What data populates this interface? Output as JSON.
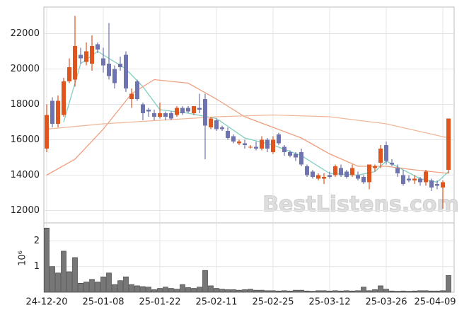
{
  "chart_data": {
    "type": "candlestick",
    "categories": [
      "24-12-20",
      null,
      null,
      null,
      null,
      null,
      null,
      null,
      null,
      null,
      "25-01-08",
      null,
      null,
      null,
      null,
      null,
      null,
      null,
      null,
      null,
      "25-01-22",
      null,
      null,
      null,
      null,
      null,
      null,
      null,
      null,
      null,
      "25-02-11",
      null,
      null,
      null,
      null,
      null,
      null,
      null,
      null,
      null,
      "25-02-25",
      null,
      null,
      null,
      null,
      null,
      null,
      null,
      null,
      null,
      "25-03-12",
      null,
      null,
      null,
      null,
      null,
      null,
      null,
      null,
      null,
      "25-03-26",
      null,
      null,
      null,
      null,
      null,
      null,
      null,
      null,
      null,
      "25-04-09",
      null
    ],
    "open": [
      15500,
      18200,
      16900,
      17400,
      19300,
      19400,
      20800,
      20400,
      20300,
      21400,
      20600,
      20300,
      20000,
      20300,
      20800,
      18300,
      19300,
      18000,
      17700,
      17500,
      17300,
      17500,
      17500,
      17400,
      17800,
      17800,
      17500,
      17800,
      18300,
      16700,
      17100,
      16700,
      16500,
      16200,
      15800,
      15800,
      15600,
      15600,
      15500,
      16000,
      15300,
      16300,
      15600,
      15300,
      15200,
      15300,
      14500,
      14200,
      13800,
      13800,
      14000,
      14000,
      14400,
      14200,
      14000,
      14000,
      13900,
      13600,
      14400,
      14700,
      15700,
      14700,
      14400,
      14000,
      13800,
      13700,
      13800,
      13600,
      13700,
      13500,
      13300,
      14300
    ],
    "high": [
      18000,
      18400,
      18500,
      19500,
      20600,
      23000,
      21200,
      21500,
      21900,
      21500,
      21200,
      22600,
      20200,
      20700,
      21000,
      18900,
      19400,
      18100,
      17800,
      17700,
      18100,
      17600,
      17600,
      17900,
      17900,
      17900,
      17900,
      18600,
      18600,
      17300,
      17200,
      16800,
      16700,
      16300,
      16000,
      16000,
      15700,
      15900,
      16200,
      16100,
      16200,
      16400,
      15700,
      15400,
      15300,
      15500,
      14600,
      14300,
      14100,
      14100,
      14200,
      14600,
      14600,
      14300,
      14600,
      14200,
      14000,
      14600,
      14600,
      15700,
      15900,
      14900,
      14600,
      14300,
      14000,
      14000,
      13900,
      14300,
      13800,
      13700,
      13700,
      17200
    ],
    "low": [
      15300,
      16700,
      16700,
      17300,
      19200,
      19000,
      20300,
      20200,
      19900,
      20900,
      19800,
      19400,
      18900,
      19900,
      18700,
      17800,
      18200,
      17100,
      17300,
      17100,
      17200,
      17100,
      17100,
      17300,
      17400,
      17500,
      17400,
      17500,
      14900,
      16600,
      16500,
      16500,
      16000,
      15800,
      15700,
      15500,
      15500,
      15400,
      15400,
      15300,
      15200,
      15700,
      15100,
      15000,
      14800,
      14500,
      13900,
      13800,
      13700,
      13500,
      13800,
      13900,
      13900,
      13800,
      13900,
      13700,
      13500,
      13200,
      14200,
      14400,
      14600,
      14500,
      13900,
      13400,
      13600,
      13500,
      13400,
      13400,
      13100,
      13200,
      12100,
      14100
    ],
    "close": [
      17400,
      16900,
      18200,
      19300,
      20100,
      21300,
      20600,
      21000,
      21300,
      21100,
      20200,
      19600,
      19200,
      20100,
      18900,
      18600,
      18300,
      17500,
      17600,
      17300,
      17500,
      17300,
      17200,
      17800,
      17500,
      17600,
      17900,
      17700,
      16800,
      17200,
      16600,
      16600,
      16100,
      15900,
      15900,
      15700,
      15600,
      15500,
      16000,
      15500,
      16000,
      15800,
      15300,
      15100,
      15000,
      14600,
      14000,
      13900,
      14000,
      13900,
      13900,
      14500,
      14000,
      13900,
      14400,
      13800,
      13600,
      14600,
      14500,
      15500,
      14800,
      14600,
      14100,
      13500,
      13700,
      13800,
      13600,
      14200,
      13300,
      13400,
      13600,
      17200
    ],
    "colors": {
      "up": "#e0541e",
      "down": "#6f73b0"
    },
    "ylim": [
      11300,
      23500
    ],
    "yticks": [
      12000,
      14000,
      16000,
      18000,
      20000,
      22000
    ],
    "grid": true,
    "lines": [
      {
        "color": "#7fcfc0",
        "x": [
          3,
          6,
          9,
          14,
          17,
          20,
          25,
          30,
          35,
          40,
          45,
          50,
          55,
          58,
          60,
          63,
          66,
          69,
          71
        ],
        "values": [
          17000,
          20300,
          21000,
          20000,
          19000,
          17700,
          17500,
          17200,
          16100,
          15700,
          15100,
          14100,
          14000,
          14200,
          14800,
          14300,
          13800,
          13600,
          14200
        ]
      },
      {
        "color": "#eea080",
        "x": [
          0,
          5,
          10,
          15,
          19,
          25,
          30,
          35,
          40,
          45,
          50,
          55,
          60,
          65,
          71
        ],
        "values": [
          14000,
          14900,
          16600,
          18600,
          19400,
          19200,
          18300,
          17300,
          16700,
          16100,
          15200,
          14500,
          14500,
          14300,
          14100
        ]
      },
      {
        "color": "#f0b898",
        "x": [
          0,
          10,
          20,
          30,
          40,
          50,
          60,
          71
        ],
        "values": [
          16600,
          16900,
          17100,
          17300,
          17400,
          17300,
          16900,
          16100
        ]
      }
    ],
    "volume": {
      "color": "#777777",
      "ylim": [
        0,
        2.7
      ],
      "yticks": [
        1,
        2
      ],
      "label": "10⁶",
      "values": [
        2.5,
        1.0,
        0.75,
        1.6,
        0.8,
        1.35,
        0.35,
        0.4,
        0.5,
        0.4,
        0.6,
        0.75,
        0.3,
        0.45,
        0.6,
        0.3,
        0.25,
        0.22,
        0.2,
        0.1,
        0.15,
        0.2,
        0.15,
        0.12,
        0.3,
        0.18,
        0.15,
        0.2,
        0.85,
        0.25,
        0.15,
        0.12,
        0.1,
        0.1,
        0.08,
        0.1,
        0.12,
        0.08,
        0.08,
        0.06,
        0.06,
        0.05,
        0.06,
        0.05,
        0.08,
        0.08,
        0.05,
        0.04,
        0.06,
        0.06,
        0.05,
        0.06,
        0.05,
        0.06,
        0.05,
        0.06,
        0.2,
        0.06,
        0.1,
        0.25,
        0.12,
        0.05,
        0.04,
        0.05,
        0.04,
        0.05,
        0.06,
        0.06,
        0.05,
        0.05,
        0.06,
        0.65
      ]
    },
    "watermark": "BestListens.com"
  }
}
